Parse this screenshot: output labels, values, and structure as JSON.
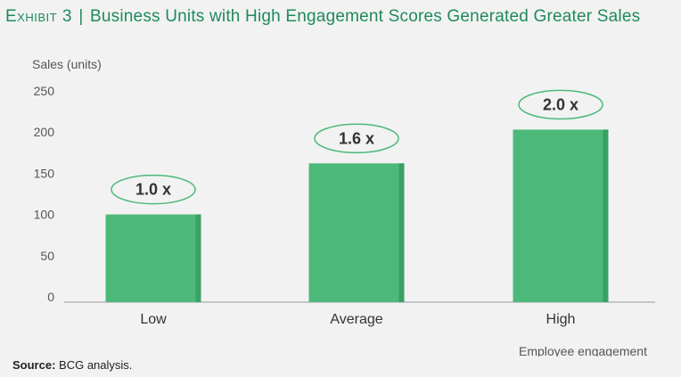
{
  "title": {
    "exhibit": "Exhibit 3",
    "separator": "|",
    "text": "Business Units with High Engagement Scores Generated Greater Sales"
  },
  "source": {
    "label": "Source:",
    "text": "BCG analysis."
  },
  "colors": {
    "title": "#1f8a5c",
    "bar": "#4cb97a",
    "bar_shadow": "#3aa065",
    "axis_text": "#555555",
    "ellipse": "#4cb97a"
  },
  "chart_data": {
    "type": "bar",
    "categories": [
      "Low",
      "Average",
      "High"
    ],
    "values": [
      100,
      162,
      203
    ],
    "bar_labels": [
      "1.0 x",
      "1.6 x",
      "2.0 x"
    ],
    "ylabel": "Sales (units)",
    "xlabel": "Employee engagement",
    "ylim": [
      0,
      250
    ],
    "yticks": [
      0,
      50,
      100,
      150,
      200,
      250
    ],
    "grid": false
  }
}
